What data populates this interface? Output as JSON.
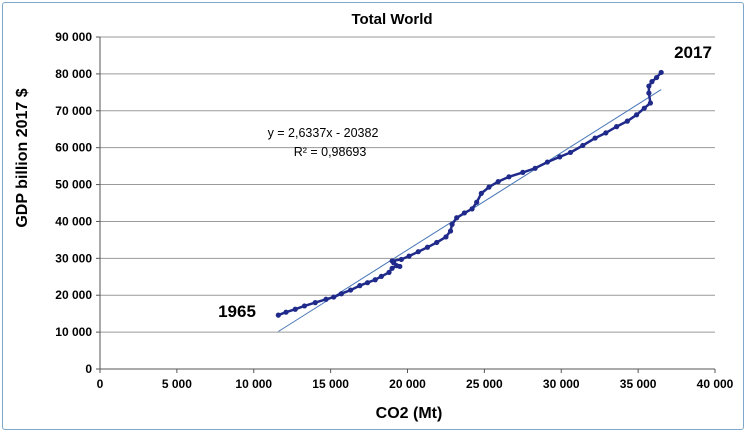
{
  "chart_data": {
    "type": "scatter",
    "title": "Total World",
    "xlabel": "CO2 (Mt)",
    "ylabel": "GDP billion 2017 $",
    "xlim": [
      0,
      40000
    ],
    "ylim": [
      0,
      90000
    ],
    "x_ticks": [
      0,
      5000,
      10000,
      15000,
      20000,
      25000,
      30000,
      35000,
      40000
    ],
    "y_ticks": [
      0,
      10000,
      20000,
      30000,
      40000,
      50000,
      60000,
      70000,
      80000,
      90000
    ],
    "x_tick_labels": [
      "0",
      "5 000",
      "10 000",
      "15 000",
      "20 000",
      "25 000",
      "30 000",
      "35 000",
      "40 000"
    ],
    "y_tick_labels": [
      "0",
      "10 000",
      "20 000",
      "30 000",
      "40 000",
      "50 000",
      "60 000",
      "70 000",
      "80 000",
      "90 000"
    ],
    "grid": "horizontal",
    "series_color": "#1f2a8a",
    "trendline_color": "#4a78b8",
    "series": [
      {
        "points": [
          [
            11600,
            14600
          ],
          [
            12100,
            15400
          ],
          [
            12700,
            16200
          ],
          [
            13300,
            17100
          ],
          [
            14000,
            18000
          ],
          [
            14700,
            18900
          ],
          [
            15200,
            19500
          ],
          [
            15700,
            20400
          ],
          [
            16300,
            21400
          ],
          [
            16900,
            22600
          ],
          [
            17400,
            23400
          ],
          [
            17900,
            24200
          ],
          [
            18300,
            25100
          ],
          [
            18800,
            26200
          ],
          [
            19000,
            27300
          ],
          [
            19300,
            28000
          ],
          [
            19500,
            27800
          ],
          [
            19100,
            28800
          ],
          [
            19000,
            29300
          ],
          [
            19600,
            29700
          ],
          [
            20100,
            30600
          ],
          [
            20700,
            31800
          ],
          [
            21300,
            33000
          ],
          [
            21900,
            34300
          ],
          [
            22500,
            35800
          ],
          [
            22800,
            37400
          ],
          [
            22900,
            39200
          ],
          [
            23200,
            41000
          ],
          [
            23700,
            42300
          ],
          [
            24200,
            43400
          ],
          [
            24500,
            45200
          ],
          [
            24800,
            47600
          ],
          [
            25300,
            49300
          ],
          [
            25900,
            50800
          ],
          [
            26600,
            52100
          ],
          [
            27500,
            53300
          ],
          [
            28300,
            54400
          ],
          [
            29100,
            56100
          ],
          [
            29900,
            57500
          ],
          [
            30600,
            58700
          ],
          [
            31400,
            60600
          ],
          [
            32200,
            62600
          ],
          [
            32900,
            64000
          ],
          [
            33600,
            65700
          ],
          [
            34300,
            67200
          ],
          [
            34900,
            68900
          ],
          [
            35400,
            70700
          ],
          [
            35800,
            72100
          ],
          [
            35700,
            74800
          ],
          [
            35700,
            76700
          ],
          [
            35900,
            77900
          ],
          [
            36200,
            79000
          ],
          [
            36500,
            80400
          ]
        ]
      }
    ],
    "trendline": {
      "slope": 2.6337,
      "intercept": -20382,
      "x_range": [
        11600,
        36500
      ],
      "equation": "y = 2,6337x - 20382",
      "r_squared": "R² = 0,98693"
    },
    "annotations": {
      "start_label": "1965",
      "end_label": "2017"
    }
  }
}
